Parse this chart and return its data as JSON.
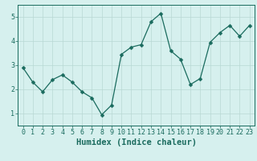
{
  "x": [
    0,
    1,
    2,
    3,
    4,
    5,
    6,
    7,
    8,
    9,
    10,
    11,
    12,
    13,
    14,
    15,
    16,
    17,
    18,
    19,
    20,
    21,
    22,
    23
  ],
  "y": [
    2.9,
    2.3,
    1.9,
    2.4,
    2.6,
    2.3,
    1.9,
    1.65,
    0.95,
    1.35,
    3.45,
    3.75,
    3.85,
    4.8,
    5.15,
    3.6,
    3.25,
    2.2,
    2.45,
    3.95,
    4.35,
    4.65,
    4.2,
    4.65
  ],
  "line_color": "#1a6b5e",
  "marker": "D",
  "marker_size": 2.5,
  "bg_color": "#d6f0ee",
  "grid_color": "#b8d8d4",
  "xlabel": "Humidex (Indice chaleur)",
  "ylabel": "",
  "xlim": [
    -0.5,
    23.5
  ],
  "ylim": [
    0.5,
    5.5
  ],
  "xticks": [
    0,
    1,
    2,
    3,
    4,
    5,
    6,
    7,
    8,
    9,
    10,
    11,
    12,
    13,
    14,
    15,
    16,
    17,
    18,
    19,
    20,
    21,
    22,
    23
  ],
  "yticks": [
    1,
    2,
    3,
    4,
    5
  ],
  "tick_color": "#1a6b5e",
  "label_color": "#1a6b5e",
  "xlabel_fontsize": 7.5,
  "tick_fontsize": 6.0,
  "spine_color": "#1a6b5e"
}
